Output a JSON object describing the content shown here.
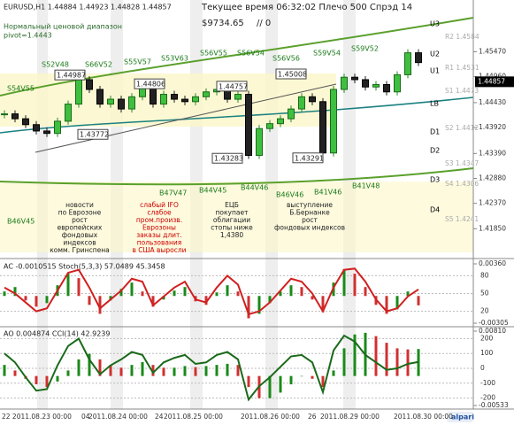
{
  "header": {
    "symbol": "EURUSD,H1  1.44884 1.44923 1.44828 1.44857",
    "status": "Текущее время 06:32:02 Плечо 500 Спрэд 14",
    "range": "Нормальный ценовой диапазон",
    "pivot": "pivot=1.4443",
    "balance": "$9734.65",
    "orders": "// 0"
  },
  "chart_data": [
    {
      "type": "candlestick",
      "values": [
        1.442,
        1.441,
        1.4398,
        1.4385,
        1.438,
        1.4405,
        1.444,
        1.449,
        1.447,
        1.444,
        1.445,
        1.443,
        1.4455,
        1.4475,
        1.444,
        1.446,
        1.445,
        1.4445,
        1.4455,
        1.4465,
        1.447,
        1.445,
        1.446,
        1.4335,
        1.439,
        1.44,
        1.441,
        1.443,
        1.4455,
        1.4445,
        1.434,
        1.447,
        1.4495,
        1.449,
        1.4475,
        1.448,
        1.4465,
        1.45,
        1.4545,
        1.4525
      ],
      "ylim": [
        1.4124,
        1.4653
      ],
      "yticks": [
        {
          "value": 1.4547,
          "label": "1.45470"
        },
        {
          "value": 1.4496,
          "label": "1.44960"
        },
        {
          "value": 1.4443,
          "label": "1.44430"
        },
        {
          "value": 1.4392,
          "label": "1.43920"
        },
        {
          "value": 1.4339,
          "label": "1.43390"
        },
        {
          "value": 1.4288,
          "label": "1.42880"
        },
        {
          "value": 1.4237,
          "label": "1.42370"
        },
        {
          "value": 1.4185,
          "label": "1.41850"
        }
      ],
      "current": {
        "value": 1.44857,
        "label": "1.44857"
      },
      "price_boxes": [
        {
          "value": 1.44987,
          "label": "1.44987"
        },
        {
          "value": 1.43772,
          "label": "1.43772"
        },
        {
          "value": 1.44806,
          "label": "1.44806"
        },
        {
          "value": 1.44757,
          "label": "1.44757"
        },
        {
          "value": 1.43283,
          "label": "1.43283"
        },
        {
          "value": 1.45008,
          "label": "1.45008"
        },
        {
          "value": 1.43291,
          "label": "1.43291"
        }
      ],
      "sell_labels": [
        "S54V55",
        "S52V48",
        "S66V52",
        "S55V57",
        "S53V63",
        "S56V55",
        "S56V54",
        "S56V56",
        "S59V54",
        "S59V52"
      ],
      "buy_labels": [
        "B46V45",
        "B47V47",
        "B44V45",
        "B44V46",
        "B46V46",
        "B41V46",
        "B41V48"
      ],
      "levels": [
        "U3",
        "U2",
        "U1",
        "LB",
        "D1",
        "D2",
        "D3",
        "D4"
      ],
      "pivots": [
        "R2 1.4584",
        "R1 1.4531",
        "S1 1.4473",
        "S2 1.4412",
        "S3 1.4347",
        "S4 1.4306",
        "S5 1.4241"
      ],
      "notes": [
        {
          "text": "новости по Еврозоне рост европейских фондовых индексов комм. Гринспена",
          "lines": [
            "новости",
            "по Еврозоне",
            "рост",
            "европейских",
            "фондовых",
            "индексов",
            "комм. Гринспена"
          ]
        },
        {
          "text": "слабый IFO",
          "lines": [
            "слабый IFO",
            "слабое",
            "пром.произв.",
            "Еврозоны",
            "заказы длит.",
            "пользования",
            "в США выросли"
          ]
        },
        {
          "text": "ЕЦБ",
          "lines": [
            "ЕЦБ",
            "покупает",
            "облигации",
            "стопы ниже",
            "1,4380"
          ]
        },
        {
          "text": "выступление",
          "lines": [
            "выступление",
            "Б.Бернанке",
            "рост",
            "фондовых индексов"
          ]
        }
      ]
    },
    {
      "type": "bar+line",
      "title": "AC -0.0010515  Stoch(5,3,3) 57.0489 45.3458",
      "values": [
        0.0005,
        0.001,
        -0.0005,
        -0.0012,
        -0.0008,
        0.0012,
        0.0025,
        0.002,
        -0.001,
        -0.002,
        -0.0005,
        0.0008,
        0.0015,
        0.0005,
        -0.0012,
        -0.0004,
        0.0006,
        0.001,
        -0.0006,
        -0.001,
        0.0004,
        0.0012,
        0.0005,
        -0.0025,
        -0.002,
        -0.0008,
        0.0005,
        0.0012,
        0.001,
        -0.0004,
        -0.0018,
        0.0015,
        0.003,
        0.0025,
        0.001,
        -0.001,
        -0.002,
        -0.0015,
        0.0005,
        -0.0010515
      ],
      "ylim": [
        -0.00305,
        0.0036
      ],
      "yticks": [
        {
          "value": 0.0036,
          "label": "0.00360"
        },
        {
          "value": -0.00305,
          "label": "-0.00305"
        }
      ],
      "line": [
        60,
        50,
        35,
        20,
        25,
        55,
        85,
        90,
        60,
        25,
        40,
        55,
        75,
        70,
        30,
        45,
        60,
        70,
        40,
        35,
        60,
        80,
        65,
        15,
        20,
        35,
        55,
        75,
        70,
        50,
        20,
        60,
        90,
        92,
        70,
        40,
        20,
        25,
        45,
        57.0489
      ],
      "y2lim": [
        0,
        100
      ],
      "y2ticks": [
        80,
        50,
        20
      ]
    },
    {
      "type": "bar+line",
      "title": "AO 0.004874  CCI(14) 42.9239",
      "values": [
        0.002,
        0.001,
        -0.0005,
        -0.0015,
        -0.002,
        -0.001,
        0.001,
        0.003,
        0.004,
        0.003,
        0.002,
        0.0015,
        0.002,
        0.0025,
        0.002,
        0.0015,
        0.0015,
        0.0018,
        0.0016,
        0.0018,
        0.002,
        0.0022,
        0.002,
        -0.002,
        -0.004,
        -0.004,
        -0.003,
        -0.0015,
        0,
        -0.0005,
        -0.002,
        0.001,
        0.005,
        0.0075,
        0.0078,
        0.0072,
        0.006,
        0.005,
        0.0048,
        0.004874
      ],
      "ylim": [
        -0.00533,
        0.0081
      ],
      "yticks": [
        {
          "value": 0.0081,
          "label": "0.00810"
        },
        {
          "value": -0.00533,
          "label": "-0.00533"
        }
      ],
      "line": [
        100,
        40,
        -60,
        -150,
        -140,
        20,
        150,
        200,
        60,
        -40,
        20,
        60,
        110,
        90,
        -30,
        40,
        70,
        90,
        30,
        40,
        90,
        110,
        60,
        -210,
        -120,
        -60,
        10,
        80,
        90,
        40,
        -160,
        120,
        220,
        180,
        90,
        40,
        -10,
        0,
        30,
        42.9239
      ],
      "y2lim": [
        -250,
        250
      ],
      "y2ticks": [
        200,
        100,
        0,
        -100,
        -200
      ]
    }
  ],
  "dates": [
    "22 2011.08.23 00:00",
    "04",
    "2011.08.24 00:00",
    "24",
    "2011.08.25 00:00",
    "2011.08.26 00:00",
    "26",
    "2011.08.29 00:00",
    "2011.08.30 00:00"
  ],
  "logo": "alpari"
}
